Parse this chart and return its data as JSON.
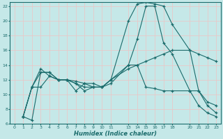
{
  "xlabel": "Humidex (Indice chaleur)",
  "ylabel": "",
  "bg_color": "#c5e8e8",
  "grid_color": "#e8c8c8",
  "line_color": "#1a6b6b",
  "xlim": [
    -0.5,
    23.5
  ],
  "ylim": [
    6,
    22.5
  ],
  "xticks": [
    0,
    1,
    2,
    3,
    4,
    5,
    6,
    7,
    8,
    9,
    10,
    11,
    13,
    14,
    15,
    16,
    17,
    18,
    20,
    21,
    22,
    23
  ],
  "yticks": [
    6,
    8,
    10,
    12,
    14,
    16,
    18,
    20,
    22
  ],
  "series": [
    {
      "x": [
        1,
        2,
        3,
        4,
        5,
        6,
        7,
        8,
        9,
        10,
        11,
        13,
        14,
        15,
        16,
        17,
        18,
        20,
        21,
        22,
        23
      ],
      "y": [
        7.0,
        6.5,
        13.0,
        13.0,
        12.0,
        12.0,
        11.8,
        11.5,
        11.0,
        11.0,
        12.0,
        20.0,
        22.3,
        22.5,
        22.3,
        22.0,
        19.5,
        16.0,
        10.5,
        8.5,
        7.5
      ]
    },
    {
      "x": [
        1,
        2,
        3,
        4,
        5,
        6,
        7,
        8,
        9,
        10,
        11,
        13,
        14,
        15,
        16,
        17,
        18,
        20,
        21,
        22,
        23
      ],
      "y": [
        7.0,
        11.0,
        11.0,
        12.5,
        12.0,
        12.0,
        11.5,
        10.5,
        11.0,
        11.0,
        12.0,
        13.5,
        14.0,
        14.5,
        15.0,
        15.5,
        16.0,
        16.0,
        15.5,
        15.0,
        14.5
      ]
    },
    {
      "x": [
        1,
        2,
        3,
        4,
        5,
        6,
        7,
        8,
        9,
        10,
        11,
        13,
        14,
        15,
        16,
        17,
        18,
        20,
        21,
        22,
        23
      ],
      "y": [
        7.0,
        11.0,
        13.5,
        12.5,
        12.0,
        12.0,
        10.5,
        11.5,
        11.5,
        11.0,
        11.5,
        14.0,
        14.0,
        11.0,
        10.8,
        10.5,
        10.5,
        10.5,
        10.5,
        9.0,
        8.5
      ]
    },
    {
      "x": [
        1,
        2,
        3,
        4,
        5,
        6,
        7,
        8,
        9,
        10,
        11,
        13,
        14,
        15,
        16,
        17,
        18,
        20,
        21,
        22,
        23
      ],
      "y": [
        7.0,
        11.0,
        13.0,
        13.0,
        12.0,
        12.0,
        11.5,
        11.0,
        11.0,
        11.0,
        12.0,
        14.0,
        17.5,
        22.0,
        22.0,
        17.0,
        15.5,
        10.5,
        8.5,
        7.5,
        7.0
      ]
    }
  ]
}
